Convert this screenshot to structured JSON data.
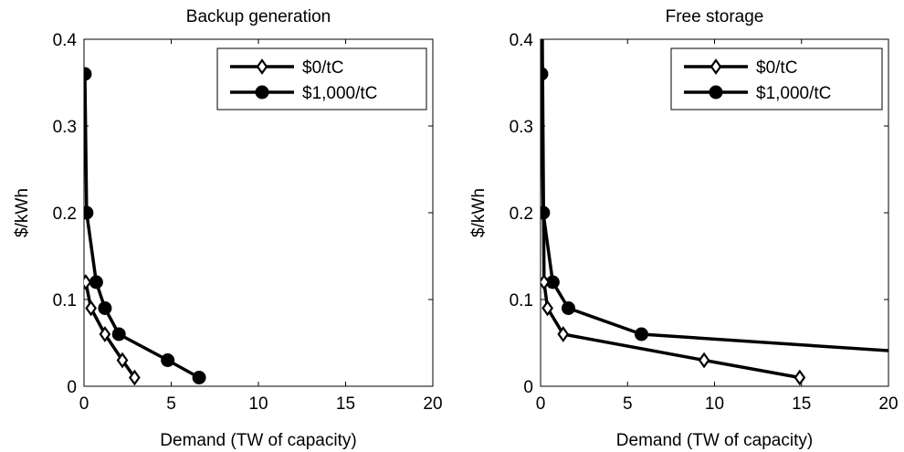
{
  "chart_data": [
    {
      "type": "line",
      "title": "Backup generation",
      "xlabel": "Demand (TW of capacity)",
      "ylabel": "$/kWh",
      "xlim": [
        0,
        20
      ],
      "ylim": [
        0,
        0.4
      ],
      "xticks": [
        "0",
        "5",
        "10",
        "15",
        "20"
      ],
      "yticks": [
        "0",
        "0.1",
        "0.2",
        "0.3",
        "0.4"
      ],
      "grid": false,
      "legend_position": "top-right",
      "series": [
        {
          "name": "$0/tC",
          "marker": "diamond-open",
          "color": "#000000",
          "x": [
            0.1,
            0.4,
            1.2,
            2.2,
            2.9
          ],
          "y": [
            0.12,
            0.09,
            0.06,
            0.03,
            0.01
          ]
        },
        {
          "name": "$1,000/tC",
          "marker": "circle-filled",
          "color": "#000000",
          "x": [
            0.05,
            0.15,
            0.7,
            1.2,
            2.0,
            4.8,
            6.6
          ],
          "y": [
            0.36,
            0.2,
            0.12,
            0.09,
            0.06,
            0.03,
            0.01
          ]
        }
      ]
    },
    {
      "type": "line",
      "title": "Free storage",
      "xlabel": "Demand (TW of capacity)",
      "ylabel": "$/kWh",
      "xlim": [
        0,
        20
      ],
      "ylim": [
        0,
        0.4
      ],
      "xticks": [
        "0",
        "5",
        "10",
        "15",
        "20"
      ],
      "yticks": [
        "0",
        "0.1",
        "0.2",
        "0.3",
        "0.4"
      ],
      "grid": false,
      "legend_position": "top-right",
      "series": [
        {
          "name": "$0/tC",
          "marker": "diamond-open",
          "color": "#000000",
          "x": [
            0.1,
            0.2,
            0.4,
            1.3,
            9.4,
            14.9
          ],
          "y": [
            0.4,
            0.12,
            0.09,
            0.06,
            0.03,
            0.01
          ]
        },
        {
          "name": "$1,000/tC",
          "marker": "circle-filled",
          "color": "#000000",
          "x": [
            0.05,
            0.15,
            0.7,
            1.6,
            5.8,
            20.0
          ],
          "y": [
            0.36,
            0.2,
            0.12,
            0.09,
            0.06,
            0.041
          ]
        }
      ]
    }
  ]
}
